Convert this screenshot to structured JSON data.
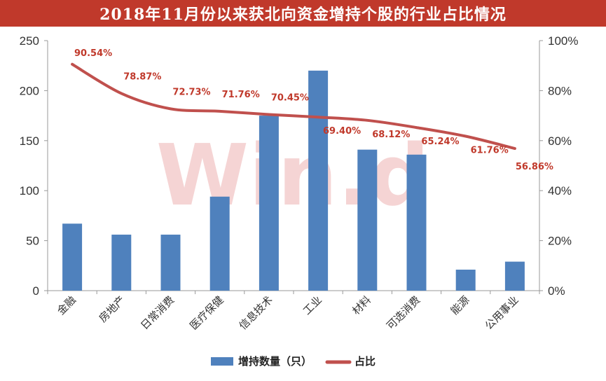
{
  "chart_data": {
    "type": "bar+line",
    "title": "2018年11月份以来获北向资金增持个股的行业占比情况",
    "watermark": "Win.d",
    "categories": [
      "金融",
      "房地产",
      "日常消费",
      "医疗保健",
      "信息技术",
      "工业",
      "材料",
      "可选消费",
      "能源",
      "公用事业"
    ],
    "series": [
      {
        "name": "增持数量（只）",
        "type": "bar",
        "axis": "left",
        "color": "#4f81bd",
        "values": [
          67,
          56,
          56,
          94,
          175,
          220,
          141,
          136,
          21,
          29
        ]
      },
      {
        "name": "占比",
        "type": "line",
        "axis": "right",
        "color": "#c0504d",
        "values": [
          90.54,
          78.87,
          72.73,
          71.76,
          70.45,
          69.4,
          68.12,
          65.24,
          61.76,
          56.86
        ],
        "labels": [
          "90.54%",
          "78.87%",
          "72.73%",
          "71.76%",
          "70.45%",
          "69.40%",
          "68.12%",
          "65.24%",
          "61.76%",
          "56.86%"
        ]
      }
    ],
    "y_left": {
      "min": 0,
      "max": 250,
      "ticks": [
        "0",
        "50",
        "100",
        "150",
        "200",
        "250"
      ]
    },
    "y_right": {
      "min": 0,
      "max": 100,
      "ticks": [
        "0%",
        "20%",
        "40%",
        "60%",
        "80%",
        "100%"
      ]
    },
    "grid": false,
    "legend": "bottom"
  }
}
